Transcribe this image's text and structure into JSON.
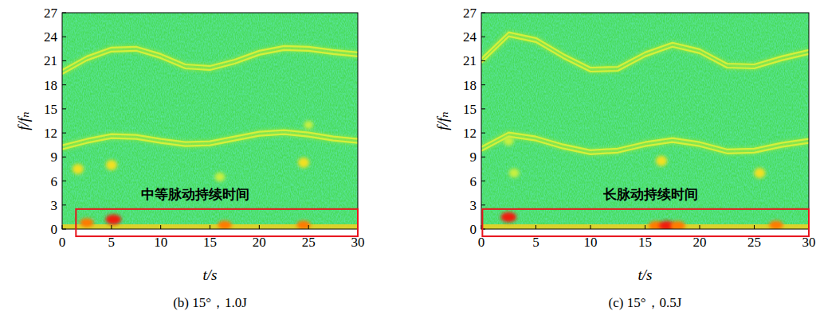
{
  "chart_data": [
    {
      "type": "spectrogram",
      "caption": "(b) 15°，1.0J",
      "x_label": "t/s",
      "y_label": "f/fₙ",
      "xlim": [
        0,
        30
      ],
      "ylim": [
        0,
        27
      ],
      "xticks": [
        0,
        5,
        10,
        15,
        20,
        25,
        30
      ],
      "yticks": [
        0,
        3,
        6,
        9,
        12,
        15,
        18,
        21,
        24,
        27
      ],
      "grid": false,
      "x": [
        0,
        2.5,
        5,
        7.5,
        10,
        12.5,
        15,
        17.5,
        20,
        22.5,
        25,
        27.5,
        30
      ],
      "series": [
        {
          "color": "#d4f03c",
          "values": [
            19.6,
            21.3,
            22.4,
            22.5,
            21.6,
            20.3,
            20.1,
            20.9,
            22.0,
            22.6,
            22.5,
            22.1,
            21.8
          ]
        },
        {
          "color": "#d4f03c",
          "values": [
            10.2,
            11.0,
            11.6,
            11.5,
            11.0,
            10.6,
            10.7,
            11.3,
            11.9,
            12.1,
            11.8,
            11.3,
            11.0
          ]
        }
      ],
      "spots": [
        {
          "x": 5.2,
          "y": 1.2,
          "value": 1.0
        },
        {
          "x": 2.5,
          "y": 0.8,
          "value": 0.8
        },
        {
          "x": 16.5,
          "y": 0.5,
          "value": 0.8
        },
        {
          "x": 24.5,
          "y": 0.5,
          "value": 0.8
        },
        {
          "x": 1.6,
          "y": 7.5,
          "value": 0.5
        },
        {
          "x": 5.0,
          "y": 8.0,
          "value": 0.5
        },
        {
          "x": 24.5,
          "y": 8.3,
          "value": 0.5
        },
        {
          "x": 16.0,
          "y": 6.5,
          "value": 0.4
        },
        {
          "x": 25.0,
          "y": 13.0,
          "value": 0.3
        }
      ],
      "annotation": {
        "text": "中等脉动持续时间",
        "x": 13.5,
        "y": 4.4
      },
      "highlight": {
        "x": [
          1.4,
          30
        ],
        "y": [
          -0.9,
          2.5
        ],
        "color": "#e8141c"
      }
    },
    {
      "type": "spectrogram",
      "caption": "(c) 15°，0.5J",
      "x_label": "t/s",
      "y_label": "f/fₙ",
      "xlim": [
        0,
        30
      ],
      "ylim": [
        0,
        27
      ],
      "xticks": [
        0,
        5,
        10,
        15,
        20,
        25,
        30
      ],
      "yticks": [
        0,
        3,
        6,
        9,
        12,
        15,
        18,
        21,
        24,
        27
      ],
      "grid": false,
      "x": [
        0,
        2.5,
        5,
        7.5,
        10,
        12.5,
        15,
        17.5,
        20,
        22.5,
        25,
        27.5,
        30
      ],
      "series": [
        {
          "color": "#d4f03c",
          "values": [
            21.0,
            24.3,
            23.6,
            21.6,
            19.9,
            20.0,
            21.8,
            23.0,
            22.2,
            20.4,
            20.3,
            21.3,
            22.1
          ]
        },
        {
          "color": "#d4f03c",
          "values": [
            10.0,
            11.8,
            11.3,
            10.3,
            9.6,
            9.8,
            10.6,
            11.1,
            10.6,
            9.7,
            9.8,
            10.5,
            11.0
          ]
        }
      ],
      "spots": [
        {
          "x": 2.5,
          "y": 1.5,
          "value": 1.0
        },
        {
          "x": 16.0,
          "y": 0.4,
          "value": 0.9
        },
        {
          "x": 17.0,
          "y": 0.4,
          "value": 1.0
        },
        {
          "x": 18.0,
          "y": 0.4,
          "value": 0.9
        },
        {
          "x": 27.0,
          "y": 0.5,
          "value": 0.8
        },
        {
          "x": 2.5,
          "y": 11.0,
          "value": 0.4
        },
        {
          "x": 16.5,
          "y": 8.5,
          "value": 0.5
        },
        {
          "x": 25.5,
          "y": 7.0,
          "value": 0.5
        },
        {
          "x": 3.0,
          "y": 7.0,
          "value": 0.4
        }
      ],
      "annotation": {
        "text": "长脉动持续时间",
        "x": 15.5,
        "y": 4.4
      },
      "highlight": {
        "x": [
          0.1,
          30
        ],
        "y": [
          -0.9,
          2.5
        ],
        "color": "#e8141c"
      }
    }
  ]
}
